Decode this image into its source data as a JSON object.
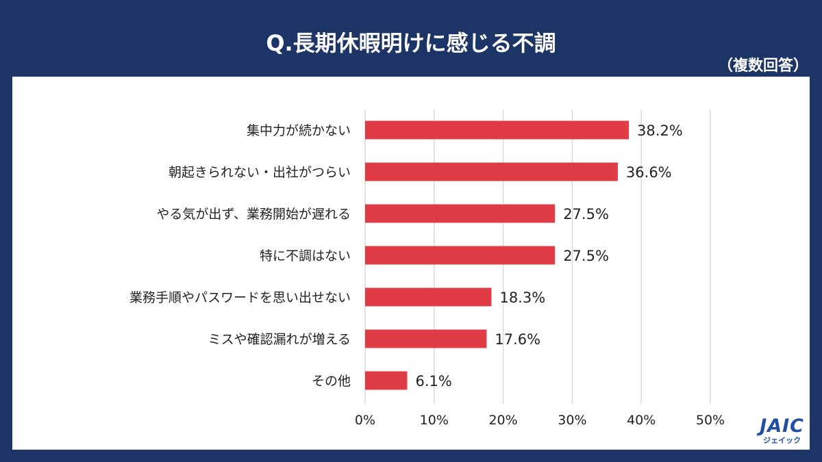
{
  "title": "Q.長期休暇明けに感じる不調",
  "subtitle": "（複数回答）",
  "logo": {
    "mark": "JAIC",
    "sub": "ジェイック"
  },
  "colors": {
    "background": "#1c3566",
    "bar": "#e03c46",
    "panel": "#ffffff"
  },
  "chart_data": {
    "type": "bar",
    "orientation": "horizontal",
    "categories": [
      "集中力が続かない",
      "朝起きられない・出社がつらい",
      "やる気が出ず、業務開始が遅れる",
      "特に不調はない",
      "業務手順やパスワードを思い出せない",
      "ミスや確認漏れが増える",
      "その他"
    ],
    "values": [
      38.2,
      36.6,
      27.5,
      27.5,
      18.3,
      17.6,
      6.1
    ],
    "value_labels": [
      "38.2%",
      "36.6%",
      "27.5%",
      "27.5%",
      "18.3%",
      "17.6%",
      "6.1%"
    ],
    "xlim": [
      0,
      50
    ],
    "xticks": [
      "0%",
      "10%",
      "20%",
      "30%",
      "40%",
      "50%"
    ],
    "grid": "vertical"
  }
}
